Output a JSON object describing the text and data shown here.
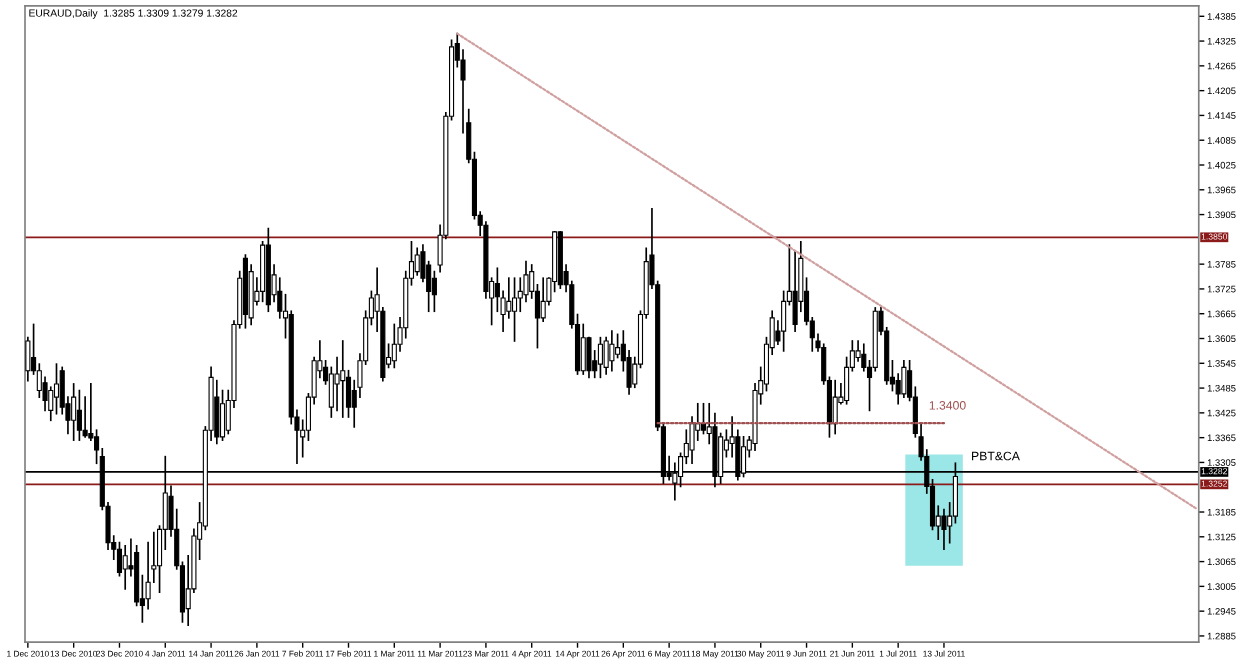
{
  "chart_data": {
    "type": "candlestick",
    "title": "EURAUD,Daily  1.3285 1.3309 1.3279 1.3282",
    "color": "#000000",
    "ohlc": [
      [
        1.3527,
        1.3607,
        1.3503,
        1.3599
      ],
      [
        1.3559,
        1.3639,
        1.3519,
        1.3527
      ],
      [
        1.3479,
        1.3543,
        1.3463,
        1.3527
      ],
      [
        1.3498,
        1.3511,
        1.3431,
        1.3455
      ],
      [
        1.3431,
        1.3487,
        1.3407,
        1.3479
      ],
      [
        1.3463,
        1.3543,
        1.3423,
        1.3495
      ],
      [
        1.3527,
        1.3535,
        1.3423,
        1.3439
      ],
      [
        1.3447,
        1.3463,
        1.3375,
        1.3407
      ],
      [
        1.3407,
        1.3495,
        1.3359,
        1.3463
      ],
      [
        1.3431,
        1.3479,
        1.3359,
        1.3383
      ],
      [
        1.3383,
        1.3463,
        1.3367,
        1.337
      ],
      [
        1.3375,
        1.3495,
        1.3359,
        1.3364
      ],
      [
        1.3367,
        1.3383,
        1.3303,
        1.3335
      ],
      [
        1.3319,
        1.3338,
        1.3191,
        1.3199
      ],
      [
        1.3199,
        1.3207,
        1.3095,
        1.3111
      ],
      [
        1.3111,
        1.3127,
        1.3071,
        1.3095
      ],
      [
        1.3095,
        1.3111,
        1.3031,
        1.3039
      ],
      [
        1.3047,
        1.3103,
        1.2999,
        1.3079
      ],
      [
        1.3055,
        1.3119,
        1.3031,
        1.3047
      ],
      [
        1.3087,
        1.3103,
        1.2959,
        1.2967
      ],
      [
        1.2975,
        1.3031,
        1.2919,
        1.2959
      ],
      [
        1.2975,
        1.3111,
        1.2951,
        1.3015
      ],
      [
        1.3047,
        1.3135,
        1.3015,
        1.3055
      ],
      [
        1.3055,
        1.3151,
        1.2991,
        1.3143
      ],
      [
        1.3143,
        1.3319,
        1.3095,
        1.3231
      ],
      [
        1.3223,
        1.3247,
        1.3127,
        1.3143
      ],
      [
        1.3143,
        1.3191,
        1.3047,
        1.3055
      ],
      [
        1.3055,
        1.3063,
        1.2919,
        1.2943
      ],
      [
        1.2951,
        1.3079,
        1.2911,
        1.2999
      ],
      [
        1.2999,
        1.3143,
        1.2991,
        1.3127
      ],
      [
        1.3119,
        1.3207,
        1.3071,
        1.3159
      ],
      [
        1.3151,
        1.3391,
        1.3143,
        1.3383
      ],
      [
        1.3383,
        1.3535,
        1.3359,
        1.3511
      ],
      [
        1.3463,
        1.3503,
        1.3351,
        1.3367
      ],
      [
        1.3367,
        1.3479,
        1.3359,
        1.3447
      ],
      [
        1.3383,
        1.3479,
        1.3375,
        1.3455
      ],
      [
        1.3455,
        1.3647,
        1.3439,
        1.3639
      ],
      [
        1.3639,
        1.3767,
        1.3631,
        1.3751
      ],
      [
        1.3799,
        1.3807,
        1.3631,
        1.3663
      ],
      [
        1.3655,
        1.3783,
        1.3639,
        1.3767
      ],
      [
        1.3695,
        1.3751,
        1.3687,
        1.3719
      ],
      [
        1.3719,
        1.3839,
        1.3695,
        1.3831
      ],
      [
        1.3831,
        1.3871,
        1.3671,
        1.3687
      ],
      [
        1.3711,
        1.3783,
        1.3695,
        1.3759
      ],
      [
        1.3719,
        1.3751,
        1.3655,
        1.3671
      ],
      [
        1.3655,
        1.3711,
        1.3607,
        1.3671
      ],
      [
        1.3663,
        1.3671,
        1.3399,
        1.3415
      ],
      [
        1.3415,
        1.3431,
        1.3303,
        1.3383
      ],
      [
        1.3367,
        1.3407,
        1.3319,
        1.3383
      ],
      [
        1.3383,
        1.3471,
        1.3359,
        1.3463
      ],
      [
        1.3463,
        1.3559,
        1.3447,
        1.3551
      ],
      [
        1.3527,
        1.3599,
        1.3511,
        1.3551
      ],
      [
        1.3535,
        1.3551,
        1.3495,
        1.3503
      ],
      [
        1.3439,
        1.3535,
        1.3415,
        1.3519
      ],
      [
        1.3495,
        1.3559,
        1.3431,
        1.3519
      ],
      [
        1.3503,
        1.3599,
        1.3415,
        1.3527
      ],
      [
        1.3511,
        1.3527,
        1.3415,
        1.3439
      ],
      [
        1.3479,
        1.3503,
        1.3391,
        1.3439
      ],
      [
        1.3487,
        1.3567,
        1.3463,
        1.3551
      ],
      [
        1.3551,
        1.3671,
        1.3543,
        1.3655
      ],
      [
        1.3655,
        1.3719,
        1.3639,
        1.3703
      ],
      [
        1.3671,
        1.3775,
        1.3623,
        1.3711
      ],
      [
        1.3671,
        1.3679,
        1.3503,
        1.3511
      ],
      [
        1.3543,
        1.3591,
        1.3535,
        1.3559
      ],
      [
        1.3551,
        1.3639,
        1.3535,
        1.3591
      ],
      [
        1.3591,
        1.3655,
        1.3575,
        1.3631
      ],
      [
        1.3631,
        1.3767,
        1.3607,
        1.3751
      ],
      [
        1.3751,
        1.3839,
        1.3735,
        1.3791
      ],
      [
        1.3767,
        1.3823,
        1.3759,
        1.3807
      ],
      [
        1.3815,
        1.3831,
        1.3743,
        1.3751
      ],
      [
        1.3783,
        1.3791,
        1.3671,
        1.3719
      ],
      [
        1.3751,
        1.3767,
        1.3671,
        1.3711
      ],
      [
        1.3783,
        1.3879,
        1.3767,
        1.3855
      ],
      [
        1.3855,
        1.4151,
        1.3847,
        1.4143
      ],
      [
        1.4143,
        1.4327,
        1.4135,
        1.4311
      ],
      [
        1.4319,
        1.4343,
        1.4263,
        1.4279
      ],
      [
        1.4279,
        1.4303,
        1.4103,
        1.4231
      ],
      [
        1.4127,
        1.4159,
        1.4031,
        1.4039
      ],
      [
        1.4039,
        1.4055,
        1.3895,
        1.3903
      ],
      [
        1.3903,
        1.3911,
        1.3855,
        1.3879
      ],
      [
        1.3879,
        1.3887,
        1.3703,
        1.3719
      ],
      [
        1.3703,
        1.3751,
        1.3639,
        1.3743
      ],
      [
        1.3738,
        1.3775,
        1.3671,
        1.3706
      ],
      [
        1.3663,
        1.3719,
        1.3623,
        1.3703
      ],
      [
        1.3671,
        1.3751,
        1.3655,
        1.3695
      ],
      [
        1.3671,
        1.3751,
        1.3599,
        1.3703
      ],
      [
        1.3703,
        1.3751,
        1.3671,
        1.3719
      ],
      [
        1.3711,
        1.3791,
        1.3695,
        1.3759
      ],
      [
        1.3719,
        1.3783,
        1.3703,
        1.3767
      ],
      [
        1.3719,
        1.3735,
        1.3583,
        1.3655
      ],
      [
        1.3655,
        1.3751,
        1.3647,
        1.3695
      ],
      [
        1.3695,
        1.3751,
        1.3687,
        1.3751
      ],
      [
        1.3743,
        1.3863,
        1.3719,
        1.3863
      ],
      [
        1.3863,
        1.3863,
        1.3727,
        1.3735
      ],
      [
        1.3767,
        1.3783,
        1.3719,
        1.3735
      ],
      [
        1.3735,
        1.3743,
        1.3631,
        1.3639
      ],
      [
        1.3639,
        1.3663,
        1.3519,
        1.3527
      ],
      [
        1.3527,
        1.3639,
        1.3519,
        1.3607
      ],
      [
        1.3607,
        1.3607,
        1.3511,
        1.3527
      ],
      [
        1.3551,
        1.3575,
        1.3511,
        1.3527
      ],
      [
        1.3543,
        1.3607,
        1.3511,
        1.3591
      ],
      [
        1.3535,
        1.3607,
        1.3519,
        1.3599
      ],
      [
        1.3551,
        1.3623,
        1.3527,
        1.3591
      ],
      [
        1.3567,
        1.3615,
        1.3559,
        1.3583
      ],
      [
        1.3591,
        1.3623,
        1.3527,
        1.3551
      ],
      [
        1.3559,
        1.3575,
        1.3471,
        1.3487
      ],
      [
        1.3495,
        1.3559,
        1.3487,
        1.3543
      ],
      [
        1.3543,
        1.3671,
        1.3535,
        1.3663
      ],
      [
        1.3663,
        1.3823,
        1.3655,
        1.3791
      ],
      [
        1.3807,
        1.3919,
        1.3727,
        1.3735
      ],
      [
        1.3735,
        1.3743,
        1.3383,
        1.3391
      ],
      [
        1.3391,
        1.3399,
        1.3255,
        1.3271
      ],
      [
        1.3279,
        1.3319,
        1.3263,
        1.3271
      ],
      [
        1.3255,
        1.3303,
        1.3215,
        1.3279
      ],
      [
        1.3271,
        1.3327,
        1.3247,
        1.3319
      ],
      [
        1.3319,
        1.3383,
        1.3303,
        1.3351
      ],
      [
        1.3335,
        1.3415,
        1.3303,
        1.3399
      ],
      [
        1.3383,
        1.3447,
        1.3359,
        1.3399
      ],
      [
        1.3399,
        1.3447,
        1.3375,
        1.3383
      ],
      [
        1.3375,
        1.3447,
        1.3351,
        1.3391
      ],
      [
        1.3391,
        1.3423,
        1.3247,
        1.3271
      ],
      [
        1.3271,
        1.3375,
        1.3255,
        1.3367
      ],
      [
        1.3335,
        1.3383,
        1.3319,
        1.3359
      ],
      [
        1.3351,
        1.3415,
        1.3319,
        1.3367
      ],
      [
        1.3367,
        1.3383,
        1.3263,
        1.3271
      ],
      [
        1.3279,
        1.3367,
        1.3271,
        1.3343
      ],
      [
        1.3335,
        1.3367,
        1.3319,
        1.3359
      ],
      [
        1.3351,
        1.3495,
        1.3335,
        1.3479
      ],
      [
        1.3471,
        1.3535,
        1.3447,
        1.3503
      ],
      [
        1.3495,
        1.3607,
        1.3479,
        1.3591
      ],
      [
        1.3583,
        1.3671,
        1.3567,
        1.3655
      ],
      [
        1.3623,
        1.3647,
        1.3591,
        1.3599
      ],
      [
        1.3623,
        1.3719,
        1.3575,
        1.3695
      ],
      [
        1.3695,
        1.3831,
        1.3687,
        1.3719
      ],
      [
        1.3719,
        1.3815,
        1.3623,
        1.3639
      ],
      [
        1.3695,
        1.3839,
        1.3671,
        1.3799
      ],
      [
        1.3719,
        1.3751,
        1.3639,
        1.3647
      ],
      [
        1.3647,
        1.3655,
        1.3575,
        1.3607
      ],
      [
        1.3599,
        1.3615,
        1.3575,
        1.3583
      ],
      [
        1.3583,
        1.3591,
        1.3495,
        1.3503
      ],
      [
        1.3503,
        1.3511,
        1.3367,
        1.3399
      ],
      [
        1.3399,
        1.3503,
        1.3375,
        1.3463
      ],
      [
        1.345,
        1.3495,
        1.3447,
        1.3463
      ],
      [
        1.3455,
        1.3559,
        1.3447,
        1.3535
      ],
      [
        1.3535,
        1.3599,
        1.3527,
        1.3575
      ],
      [
        1.3559,
        1.3599,
        1.3551,
        1.3575
      ],
      [
        1.3567,
        1.3591,
        1.3527,
        1.3535
      ],
      [
        1.3535,
        1.3551,
        1.3431,
        1.3511
      ],
      [
        1.3535,
        1.3679,
        1.3527,
        1.3671
      ],
      [
        1.3671,
        1.3679,
        1.3615,
        1.3623
      ],
      [
        1.3623,
        1.3631,
        1.3495,
        1.3503
      ],
      [
        1.3511,
        1.3551,
        1.3479,
        1.3495
      ],
      [
        1.3503,
        1.3519,
        1.3447,
        1.3471
      ],
      [
        1.3471,
        1.3551,
        1.3463,
        1.3535
      ],
      [
        1.3527,
        1.3551,
        1.3455,
        1.3463
      ],
      [
        1.3463,
        1.3487,
        1.3367,
        1.3375
      ],
      [
        1.3367,
        1.3399,
        1.3311,
        1.3319
      ],
      [
        1.3319,
        1.3335,
        1.3231,
        1.3247
      ],
      [
        1.3247,
        1.3263,
        1.3143,
        1.3151
      ],
      [
        1.3151,
        1.3199,
        1.3119,
        1.3175
      ],
      [
        1.3175,
        1.3191,
        1.3095,
        1.3143
      ],
      [
        1.3151,
        1.3207,
        1.3111,
        1.3175
      ],
      [
        1.3175,
        1.3303,
        1.3159,
        1.3271
      ],
      null,
      null,
      null,
      null,
      null,
      null,
      null,
      null,
      null,
      null,
      null,
      null,
      null,
      null,
      null,
      null,
      null,
      null,
      null,
      null,
      null,
      null,
      null,
      null,
      null,
      null,
      null,
      null,
      null,
      null,
      null,
      null,
      null,
      null,
      null,
      null,
      null,
      null,
      null,
      null,
      null,
      null
    ],
    "series": [
      {
        "type": "line",
        "values": [
          null,
          null,
          null,
          null,
          null,
          null,
          null,
          null,
          null,
          null,
          null,
          null,
          null,
          null,
          null,
          null,
          null,
          null,
          null,
          null,
          null,
          null,
          null,
          null,
          null,
          null,
          null,
          null,
          null,
          null,
          null,
          null,
          null,
          null,
          null,
          null,
          null,
          null,
          null,
          null,
          null,
          null,
          null,
          null,
          null,
          null,
          null,
          null,
          null,
          null,
          null,
          null,
          null,
          null,
          null,
          null,
          null,
          null,
          null,
          null,
          null,
          null,
          null,
          null,
          null,
          null,
          null,
          null,
          null,
          null,
          null,
          null,
          null,
          null,
          null,
          1.4343,
          null,
          null,
          null,
          null,
          null,
          null,
          null,
          null,
          null,
          null,
          null,
          null,
          null,
          null,
          null,
          null,
          null,
          null,
          null,
          null,
          null,
          null,
          null,
          null,
          null,
          null,
          null,
          null,
          null,
          null,
          null,
          null,
          null,
          null,
          null,
          null,
          null,
          null,
          null,
          null,
          null,
          null,
          null,
          null,
          null,
          null,
          null,
          null,
          null,
          null,
          null,
          null,
          null,
          null,
          null,
          null,
          null,
          null,
          null,
          null,
          null,
          null,
          null,
          null,
          null,
          null,
          null,
          null,
          null,
          null,
          null,
          null,
          null,
          null,
          null,
          null,
          null,
          null,
          null,
          null,
          null,
          null,
          null,
          null,
          null,
          null,
          null,
          null,
          null,
          null,
          null,
          null,
          null,
          null,
          null,
          null,
          null,
          null,
          null,
          null,
          null,
          null,
          null,
          null,
          null,
          null,
          null,
          null,
          null,
          null,
          null,
          null,
          null,
          null,
          null,
          null,
          null,
          null,
          null,
          null,
          null,
          null,
          null,
          null,
          null,
          null,
          null,
          null,
          1.3194
        ],
        "color": "#d0a0a0",
        "line_style": "dotted"
      },
      {
        "type": "line",
        "values": [
          null,
          null,
          null,
          null,
          null,
          null,
          null,
          null,
          null,
          null,
          null,
          null,
          null,
          null,
          null,
          null,
          null,
          null,
          null,
          null,
          null,
          null,
          null,
          null,
          null,
          null,
          null,
          null,
          null,
          null,
          null,
          null,
          null,
          null,
          null,
          null,
          null,
          null,
          null,
          null,
          null,
          null,
          null,
          null,
          null,
          null,
          null,
          null,
          null,
          null,
          null,
          null,
          null,
          null,
          null,
          null,
          null,
          null,
          null,
          null,
          null,
          null,
          null,
          null,
          null,
          null,
          null,
          null,
          null,
          null,
          null,
          null,
          null,
          null,
          null,
          null,
          null,
          null,
          null,
          null,
          null,
          null,
          null,
          null,
          null,
          null,
          null,
          null,
          null,
          null,
          null,
          null,
          null,
          null,
          null,
          null,
          null,
          null,
          null,
          null,
          null,
          null,
          null,
          null,
          null,
          null,
          null,
          null,
          null,
          null,
          1.34,
          null,
          null,
          null,
          null,
          null,
          null,
          null,
          null,
          null,
          null,
          null,
          null,
          null,
          null,
          null,
          null,
          null,
          null,
          null,
          null,
          null,
          null,
          null,
          null,
          null,
          null,
          null,
          null,
          null,
          null,
          null,
          null,
          null,
          null,
          null,
          null,
          null,
          null,
          null,
          null,
          null,
          null,
          null,
          null,
          null,
          null,
          null,
          null,
          null,
          1.34,
          null,
          null,
          null,
          null,
          null,
          null,
          null,
          null,
          null,
          null,
          null,
          null,
          null,
          null,
          null,
          null,
          null,
          null,
          null,
          null,
          null,
          null,
          null,
          null,
          null,
          null,
          null,
          null,
          null,
          null,
          null,
          null,
          null,
          null,
          null,
          null,
          null,
          null,
          null,
          null,
          null,
          null,
          null,
          null
        ],
        "color": "#a05050",
        "line_style": "dotted"
      }
    ],
    "categories": [
      "1 Dec 2010",
      null,
      null,
      null,
      null,
      null,
      null,
      null,
      "13 Dec 2010",
      null,
      null,
      null,
      null,
      null,
      null,
      null,
      "23 Dec 2010",
      null,
      null,
      null,
      null,
      null,
      null,
      null,
      "4 Jan 2011",
      null,
      null,
      null,
      null,
      null,
      null,
      null,
      "14 Jan 2011",
      null,
      null,
      null,
      null,
      null,
      null,
      null,
      "26 Jan 2011",
      null,
      null,
      null,
      null,
      null,
      null,
      null,
      "7 Feb 2011",
      null,
      null,
      null,
      null,
      null,
      null,
      null,
      "17 Feb 2011",
      null,
      null,
      null,
      null,
      null,
      null,
      null,
      "1 Mar 2011",
      null,
      null,
      null,
      null,
      null,
      null,
      null,
      "11 Mar 2011",
      null,
      null,
      null,
      null,
      null,
      null,
      null,
      "23 Mar 2011",
      null,
      null,
      null,
      null,
      null,
      null,
      null,
      "4 Apr 2011",
      null,
      null,
      null,
      null,
      null,
      null,
      null,
      "14 Apr 2011",
      null,
      null,
      null,
      null,
      null,
      null,
      null,
      "26 Apr 2011",
      null,
      null,
      null,
      null,
      null,
      null,
      null,
      "6 May 2011",
      null,
      null,
      null,
      null,
      null,
      null,
      null,
      "18 May 2011",
      null,
      null,
      null,
      null,
      null,
      null,
      null,
      "30 May 2011",
      null,
      null,
      null,
      null,
      null,
      null,
      null,
      "9 Jun 2011",
      null,
      null,
      null,
      null,
      null,
      null,
      null,
      "21 Jun 2011",
      null,
      null,
      null,
      null,
      null,
      null,
      null,
      "1 Jul 2011",
      null,
      null,
      null,
      null,
      null,
      null,
      null,
      "13 Jul 2011",
      null,
      null,
      null,
      null,
      null,
      null,
      null,
      null,
      null,
      null,
      null,
      null,
      null,
      null,
      null,
      null,
      null,
      null,
      null,
      null,
      null,
      null,
      null,
      null,
      null,
      null,
      null,
      null,
      null,
      null,
      null,
      null,
      null,
      null,
      null,
      null,
      null,
      null,
      null,
      null,
      null,
      null,
      null,
      null
    ],
    "ylim": [
      1.287,
      1.441
    ],
    "yticks": [
      1.2885,
      1.2945,
      1.3005,
      1.3065,
      1.3125,
      1.3185,
      1.3305,
      1.3365,
      1.3425,
      1.3485,
      1.3545,
      1.3605,
      1.3665,
      1.3725,
      1.3785,
      1.3905,
      1.3965,
      1.4025,
      1.4085,
      1.4145,
      1.4205,
      1.4265,
      1.4325,
      1.4385
    ],
    "ref_lines": [
      {
        "axis": "y",
        "value": 1.385,
        "label": "1.3850",
        "color": "#8b1a1a"
      },
      {
        "axis": "y",
        "value": 1.3282,
        "label": "1.3282",
        "color": "#000000"
      },
      {
        "axis": "y",
        "value": 1.3252,
        "label": "1.3252",
        "color": "#8b1a1a"
      }
    ],
    "annotations": [
      {
        "text": "1.3400",
        "y": 1.34
      },
      "PBT&CA"
    ],
    "grid": false
  }
}
